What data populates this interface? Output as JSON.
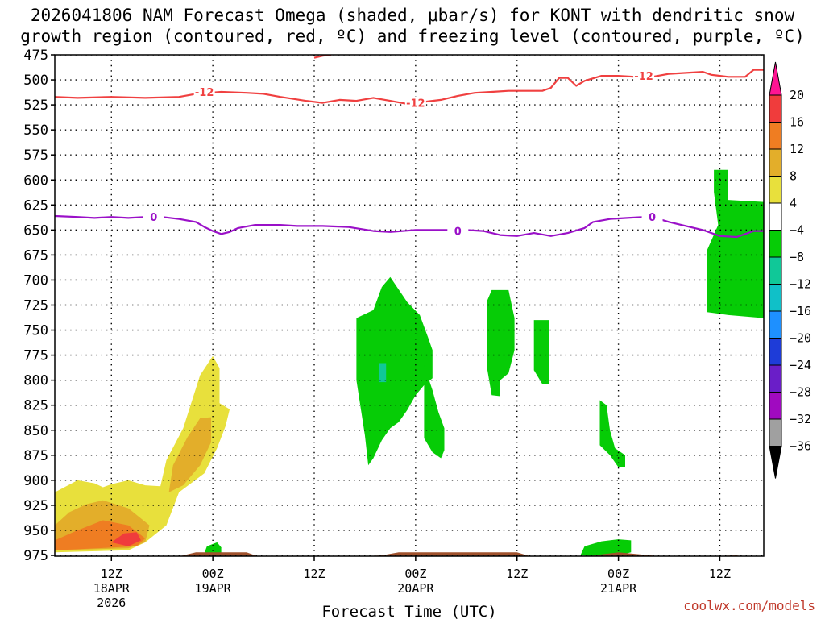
{
  "title": {
    "line1": "2026041806 NAM Forecast Omega (shaded, μbar/s) for KONT with dendritic snow",
    "line2": "growth region (contoured, red, ºC) and freezing level (contoured, purple, ºC)"
  },
  "credit": "coolwx.com/models",
  "colors": {
    "omega_shading": [
      "#ff1493",
      "#f03c3c",
      "#ef7d22",
      "#e3ae2a",
      "#e8e03c",
      "#ffffff",
      "#06cc06",
      "#10c898",
      "#10c0c8",
      "#1e90ff",
      "#1e3cd8",
      "#6a1ec8",
      "#a00ac0",
      "#a0a0a0",
      "#000000"
    ],
    "dgz_contour": "#f04040",
    "freezing_contour": "#9a10c8",
    "ground": "#a0522d"
  },
  "chart_data": {
    "type": "time-height cross-section",
    "xlabel": "Forecast Time (UTC)",
    "x_ticks": [
      {
        "hour": 18,
        "label": [
          "12Z",
          "18APR",
          "2026"
        ]
      },
      {
        "hour": 30,
        "label": [
          "00Z",
          "19APR"
        ]
      },
      {
        "hour": 42,
        "label": [
          "12Z"
        ]
      },
      {
        "hour": 54,
        "label": [
          "00Z",
          "20APR"
        ]
      },
      {
        "hour": 66,
        "label": [
          "12Z"
        ]
      },
      {
        "hour": 78,
        "label": [
          "00Z",
          "21APR"
        ]
      },
      {
        "hour": 90,
        "label": [
          "12Z"
        ]
      }
    ],
    "xlim": [
      11.3,
      95.2
    ],
    "y_ticks": [
      475,
      500,
      525,
      550,
      575,
      600,
      625,
      650,
      675,
      700,
      725,
      750,
      775,
      800,
      825,
      850,
      875,
      900,
      925,
      950,
      975
    ],
    "ylim": [
      475,
      985
    ],
    "grid": true,
    "colorbar": {
      "levels": [
        20,
        16,
        12,
        8,
        4,
        -4,
        -8,
        -12,
        -16,
        -20,
        -24,
        -28,
        -32,
        -36
      ],
      "label_suffix": ""
    },
    "dgz_contour": {
      "value": -12,
      "label": "-12",
      "points": [
        [
          11.3,
          517
        ],
        [
          14,
          518
        ],
        [
          18,
          517
        ],
        [
          22,
          518
        ],
        [
          26,
          517
        ],
        [
          28,
          514
        ],
        [
          31,
          512
        ],
        [
          34,
          513
        ],
        [
          36,
          514
        ],
        [
          38,
          517
        ],
        [
          41,
          521
        ],
        [
          43,
          523
        ],
        [
          45,
          520
        ],
        [
          47,
          521
        ],
        [
          49,
          518
        ],
        [
          51,
          521
        ],
        [
          53,
          524
        ],
        [
          55,
          522
        ],
        [
          57,
          520
        ],
        [
          59,
          516
        ],
        [
          61,
          513
        ],
        [
          63,
          512
        ],
        [
          65,
          511
        ],
        [
          67,
          511
        ],
        [
          69,
          511
        ],
        [
          70,
          508
        ],
        [
          71,
          498
        ],
        [
          72,
          498
        ],
        [
          73,
          506
        ],
        [
          74,
          501
        ],
        [
          76,
          496
        ],
        [
          78,
          496
        ],
        [
          80,
          497
        ],
        [
          82,
          497
        ],
        [
          84,
          494
        ],
        [
          86,
          493
        ],
        [
          88,
          492
        ],
        [
          89,
          495
        ],
        [
          91,
          497
        ],
        [
          93,
          497
        ],
        [
          94,
          490
        ],
        [
          95.2,
          490
        ]
      ],
      "label_positions": [
        [
          29,
          512
        ],
        [
          54,
          523
        ],
        [
          81,
          496
        ]
      ],
      "extra_points": [
        [
          42,
          478
        ],
        [
          43,
          476
        ],
        [
          44,
          475
        ]
      ]
    },
    "freezing_contour": {
      "value": 0,
      "label": "0",
      "points": [
        [
          11.3,
          636
        ],
        [
          14,
          637
        ],
        [
          16,
          638
        ],
        [
          18,
          637
        ],
        [
          20,
          638
        ],
        [
          22,
          637
        ],
        [
          24,
          637
        ],
        [
          26,
          639
        ],
        [
          28,
          642
        ],
        [
          29,
          647
        ],
        [
          30,
          651
        ],
        [
          31,
          654
        ],
        [
          32,
          652
        ],
        [
          33,
          648
        ],
        [
          35,
          645
        ],
        [
          38,
          645
        ],
        [
          40,
          646
        ],
        [
          43,
          646
        ],
        [
          46,
          647
        ],
        [
          49,
          651
        ],
        [
          51,
          652
        ],
        [
          54,
          650
        ],
        [
          57,
          650
        ],
        [
          60,
          650
        ],
        [
          62,
          651
        ],
        [
          64,
          655
        ],
        [
          66,
          656
        ],
        [
          68,
          653
        ],
        [
          70,
          656
        ],
        [
          72,
          653
        ],
        [
          74,
          648
        ],
        [
          75,
          642
        ],
        [
          77,
          639
        ],
        [
          79,
          638
        ],
        [
          81,
          637
        ],
        [
          82,
          637
        ],
        [
          84,
          642
        ],
        [
          86,
          646
        ],
        [
          88,
          650
        ],
        [
          90,
          656
        ],
        [
          92,
          657
        ],
        [
          93,
          654
        ],
        [
          94,
          651
        ],
        [
          95.2,
          651
        ]
      ],
      "label_positions": [
        [
          23,
          637
        ],
        [
          59,
          651
        ],
        [
          82,
          637
        ]
      ]
    },
    "omega_regions": [
      {
        "value": -6,
        "color": "#06cc06",
        "points": [
          [
            47,
            738
          ],
          [
            47,
            800
          ],
          [
            48,
            855
          ],
          [
            48.4,
            885
          ],
          [
            49,
            878
          ],
          [
            50,
            860
          ],
          [
            51,
            848
          ],
          [
            52,
            842
          ],
          [
            53,
            830
          ],
          [
            54,
            815
          ],
          [
            55,
            805
          ],
          [
            56,
            798
          ],
          [
            56,
            770
          ],
          [
            55.5,
            758
          ],
          [
            54.5,
            735
          ],
          [
            53,
            722
          ],
          [
            51,
            697
          ],
          [
            50,
            707
          ],
          [
            49,
            730
          ]
        ]
      },
      {
        "value": -6,
        "color": "#06cc06",
        "points": [
          [
            55,
            785
          ],
          [
            55,
            858
          ],
          [
            56,
            872
          ],
          [
            57,
            878
          ],
          [
            57.4,
            870
          ],
          [
            57.4,
            848
          ],
          [
            56.7,
            832
          ],
          [
            56,
            810
          ]
        ]
      },
      {
        "value": -6,
        "color": "#06cc06",
        "points": [
          [
            62.5,
            720
          ],
          [
            62.5,
            790
          ],
          [
            63,
            815
          ],
          [
            64,
            816
          ],
          [
            64,
            800
          ],
          [
            65,
            793
          ],
          [
            65.7,
            770
          ],
          [
            65.7,
            738
          ],
          [
            65,
            710
          ],
          [
            63,
            710
          ]
        ]
      },
      {
        "value": -6,
        "color": "#06cc06",
        "points": [
          [
            68,
            740
          ],
          [
            68,
            790
          ],
          [
            69,
            804
          ],
          [
            69.8,
            804
          ],
          [
            69.8,
            790
          ],
          [
            69.8,
            740
          ]
        ]
      },
      {
        "value": -6,
        "color": "#06cc06",
        "points": [
          [
            75.8,
            820
          ],
          [
            75.8,
            865
          ],
          [
            77,
            875
          ],
          [
            78,
            887
          ],
          [
            78.8,
            887
          ],
          [
            78.8,
            875
          ],
          [
            77.6,
            868
          ],
          [
            77,
            850
          ],
          [
            76.6,
            825
          ]
        ]
      },
      {
        "value": -6,
        "color": "#06cc06",
        "points": [
          [
            89.3,
            590
          ],
          [
            89.3,
            612
          ],
          [
            89.8,
            645
          ],
          [
            88.5,
            670
          ],
          [
            88.5,
            732
          ],
          [
            91,
            735
          ],
          [
            95.2,
            738
          ],
          [
            95.2,
            622
          ],
          [
            91,
            620
          ],
          [
            91,
            590
          ]
        ]
      },
      {
        "value": -6,
        "color": "#06cc06",
        "points": [
          [
            73.5,
            975
          ],
          [
            74,
            966
          ],
          [
            76,
            961
          ],
          [
            78,
            959
          ],
          [
            79.5,
            960
          ],
          [
            79.5,
            972
          ],
          [
            77,
            977
          ]
        ]
      },
      {
        "value": -6,
        "color": "#06cc06",
        "points": [
          [
            29,
            973
          ],
          [
            29.3,
            966
          ],
          [
            30.5,
            962
          ],
          [
            31,
            967
          ],
          [
            31,
            975
          ]
        ]
      },
      {
        "value": -10,
        "color": "#10c898",
        "points": [
          [
            49.7,
            783
          ],
          [
            49.7,
            802
          ],
          [
            50.5,
            802
          ],
          [
            50.5,
            783
          ]
        ]
      },
      {
        "value": 6,
        "color": "#e8e03c",
        "points": [
          [
            11.3,
            912
          ],
          [
            14,
            900
          ],
          [
            16,
            903
          ],
          [
            17,
            907
          ],
          [
            18,
            904
          ],
          [
            20,
            900
          ],
          [
            22,
            905
          ],
          [
            23.8,
            906
          ],
          [
            24.5,
            880
          ],
          [
            26.5,
            848
          ],
          [
            28.5,
            795
          ],
          [
            30,
            776
          ],
          [
            30.8,
            788
          ],
          [
            30.8,
            823
          ],
          [
            32,
            829
          ],
          [
            31.5,
            846
          ],
          [
            30.5,
            868
          ],
          [
            29,
            893
          ],
          [
            26,
            912
          ],
          [
            24.5,
            945
          ],
          [
            22,
            962
          ],
          [
            20,
            970
          ],
          [
            11.3,
            972
          ]
        ]
      },
      {
        "value": 10,
        "color": "#e3ae2a",
        "points": [
          [
            11.3,
            945
          ],
          [
            13,
            932
          ],
          [
            15,
            924
          ],
          [
            17,
            920
          ],
          [
            20,
            928
          ],
          [
            22.5,
            945
          ],
          [
            22,
            962
          ],
          [
            20,
            968
          ],
          [
            11.3,
            970
          ]
        ]
      },
      {
        "value": 10,
        "color": "#e3ae2a",
        "points": [
          [
            24.8,
            912
          ],
          [
            25.3,
            885
          ],
          [
            27,
            857
          ],
          [
            28.5,
            838
          ],
          [
            29.8,
            837
          ],
          [
            29.8,
            862
          ],
          [
            28.5,
            885
          ],
          [
            26.5,
            905
          ]
        ]
      },
      {
        "value": 14,
        "color": "#ef7d22",
        "points": [
          [
            11.3,
            960
          ],
          [
            14,
            950
          ],
          [
            17,
            940
          ],
          [
            20,
            945
          ],
          [
            22,
            958
          ],
          [
            21,
            966
          ],
          [
            11.3,
            970
          ]
        ]
      },
      {
        "value": 18,
        "color": "#f03c3c",
        "points": [
          [
            18,
            962
          ],
          [
            19.5,
            953
          ],
          [
            21,
            952
          ],
          [
            21.5,
            960
          ],
          [
            20,
            966
          ]
        ]
      }
    ],
    "ground": [
      [
        11.3,
        977
      ],
      [
        20,
        977
      ],
      [
        25,
        978
      ],
      [
        28,
        972
      ],
      [
        34,
        972
      ],
      [
        36,
        978
      ],
      [
        45,
        977
      ],
      [
        50,
        975
      ],
      [
        52,
        972
      ],
      [
        66,
        972
      ],
      [
        68,
        977
      ],
      [
        73,
        978
      ],
      [
        76,
        974
      ],
      [
        78,
        972
      ],
      [
        83,
        976
      ],
      [
        88,
        976
      ],
      [
        92,
        975
      ],
      [
        94,
        978
      ],
      [
        95.2,
        978
      ]
    ]
  }
}
